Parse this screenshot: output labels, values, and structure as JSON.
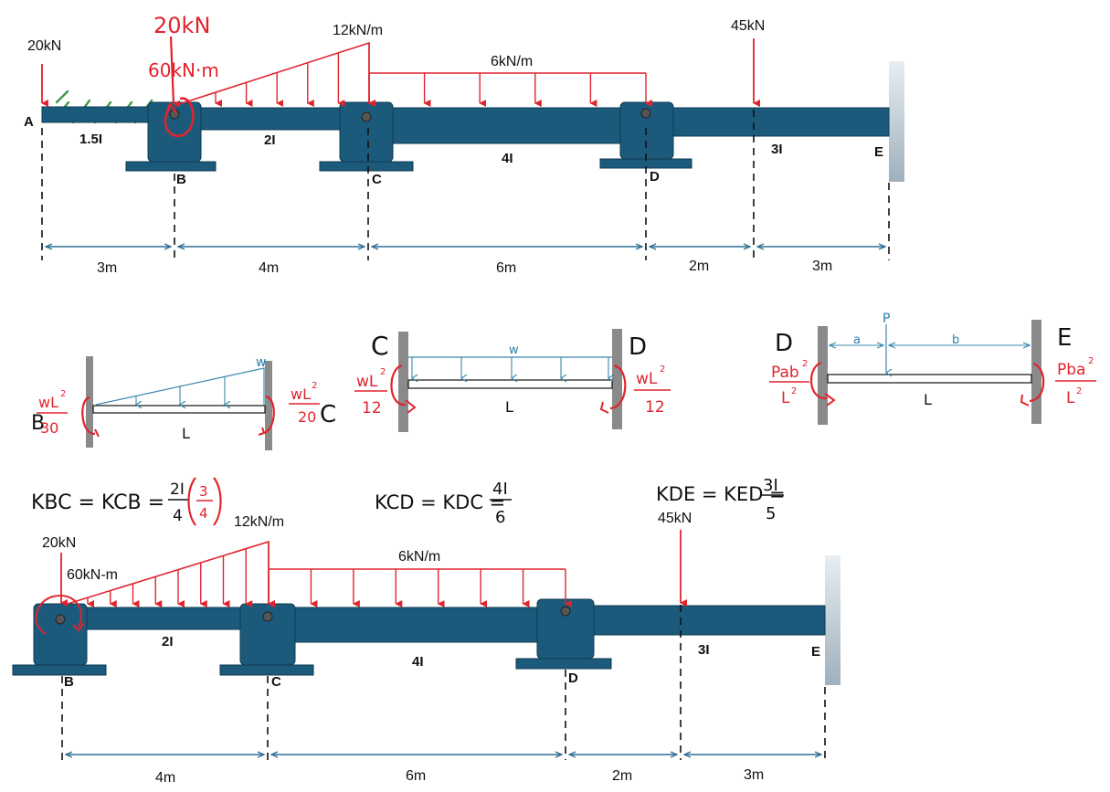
{
  "top_beam": {
    "point_load_a": "20kN",
    "point_load_b_handwritten": "20kN",
    "moment_b_handwritten": "60kN·m",
    "triangular_load": "12kN/m",
    "uniform_load": "6kN/m",
    "point_load_de": "45kN",
    "node_a": "A",
    "node_b": "B",
    "node_c": "C",
    "node_d": "D",
    "node_e": "E",
    "inertia_ab": "1.5I",
    "inertia_bc": "2I",
    "inertia_cd": "4I",
    "inertia_de": "3I",
    "dim_ab": "3m",
    "dim_bc": "4m",
    "dim_cd": "6m",
    "dim_d_load": "2m",
    "dim_load_e": "3m"
  },
  "fem_cases": {
    "triangular": {
      "left_label": "B",
      "right_label": "C",
      "left_num": "wL",
      "left_exp": "2",
      "left_den": "30",
      "right_num": "wL",
      "right_exp": "2",
      "right_den": "20",
      "load": "w",
      "span": "L"
    },
    "uniform": {
      "left_label": "C",
      "right_label": "D",
      "left_num": "wL",
      "left_exp": "2",
      "left_den": "12",
      "right_num": "wL",
      "right_exp": "2",
      "right_den": "12",
      "load": "w",
      "span": "L"
    },
    "point": {
      "left_label": "D",
      "right_label": "E",
      "left_num": "Pab",
      "left_exp": "2",
      "left_den": "L",
      "left_den_exp": "2",
      "right_num": "Pba",
      "right_exp": "2",
      "right_den": "L",
      "right_den_exp": "2",
      "load": "P",
      "a": "a",
      "b": "b",
      "span": "L"
    }
  },
  "stiffness": {
    "k_bc": "KBC = KCB = ",
    "k_bc_num": "2I",
    "k_bc_den": "4",
    "k_bc_fac_num": "3",
    "k_bc_fac_den": "4",
    "k_cd": "KCD = KDC = ",
    "k_cd_num": "4I",
    "k_cd_den": "6",
    "k_de": "KDE = KED = ",
    "k_de_num": "3I",
    "k_de_den": "5"
  },
  "bottom_beam": {
    "point_load_b": "20kN",
    "moment_b": "60kN-m",
    "triangular_load": "12kN/m",
    "uniform_load": "6kN/m",
    "point_load_de": "45kN",
    "node_b": "B",
    "node_c": "C",
    "node_d": "D",
    "node_e": "E",
    "inertia_bc": "2I",
    "inertia_cd": "4I",
    "inertia_de": "3I",
    "dim_bc": "4m",
    "dim_cd": "6m",
    "dim_d_load": "2m",
    "dim_load_e": "3m"
  },
  "colors": {
    "beam": "#1c5a7c",
    "beam_edge": "#0e3a52",
    "load_red": "#e0242e",
    "dim_blue": "#2f6f94",
    "fem_blue": "#3b88ac",
    "hatch_green": "#3e9a4a",
    "wall_gray": "#8a8a8a"
  }
}
